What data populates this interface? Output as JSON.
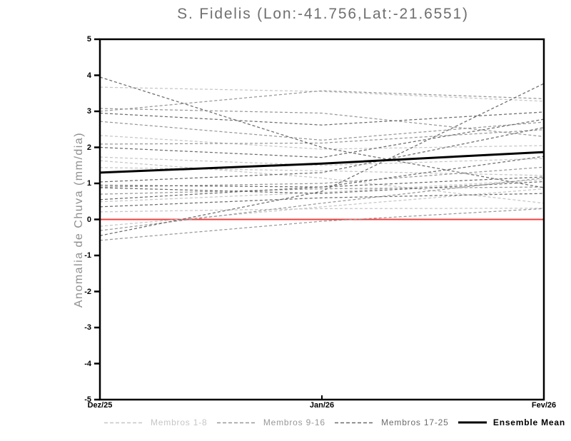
{
  "chart_data": {
    "type": "line",
    "title": "S. Fidelis (Lon:-41.756,Lat:-21.6551)",
    "ylabel": "Anomalia de Chuva (mm/dia)",
    "xlabel": "",
    "x_categories": [
      "Dez/25",
      "Jan/26",
      "Fev/26"
    ],
    "ylim": [
      -5,
      5
    ],
    "yticks": [
      5,
      4,
      3,
      2,
      1,
      0,
      -1,
      -2,
      -3,
      -4,
      -5
    ],
    "grid": "off",
    "legend_position": "bottom",
    "zero_line": {
      "value": 0,
      "color": "#f04040"
    },
    "series_groups": [
      {
        "name": "Membros 1-8",
        "color": "#c6c6c6",
        "style": "dashed",
        "members": [
          [
            3.67,
            3.55,
            3.28
          ],
          [
            2.33,
            1.95,
            2.05
          ],
          [
            1.73,
            1.5,
            1.69
          ],
          [
            1.63,
            1.15,
            0.45
          ],
          [
            1.44,
            1.35,
            1.22
          ],
          [
            0.49,
            0.75,
            1.1
          ],
          [
            0.21,
            0.3,
            0.31
          ],
          [
            -0.19,
            0.35,
            0.85
          ]
        ]
      },
      {
        "name": "Membros 9-16",
        "color": "#989898",
        "style": "dashed",
        "members": [
          [
            3.0,
            3.57,
            3.35
          ],
          [
            3.08,
            2.95,
            2.3
          ],
          [
            2.72,
            2.2,
            2.7
          ],
          [
            2.09,
            2.12,
            2.49
          ],
          [
            0.9,
            1.0,
            1.45
          ],
          [
            0.7,
            0.85,
            0.9
          ],
          [
            -0.31,
            0.45,
            1.15
          ],
          [
            -0.58,
            -0.05,
            0.3
          ]
        ]
      },
      {
        "name": "Membros 17-25",
        "color": "#6c6c6c",
        "style": "dashed",
        "members": [
          [
            3.95,
            2.0,
            0.88
          ],
          [
            2.95,
            2.62,
            2.98
          ],
          [
            2.0,
            1.72,
            2.78
          ],
          [
            1.04,
            1.3,
            2.55
          ],
          [
            0.95,
            0.9,
            1.18
          ],
          [
            0.88,
            0.72,
            1.05
          ],
          [
            0.55,
            0.9,
            1.75
          ],
          [
            0.35,
            0.6,
            0.72
          ],
          [
            -0.45,
            0.78,
            3.77
          ]
        ]
      }
    ],
    "ensemble_mean": {
      "name": "Ensemble Mean",
      "color": "#000000",
      "values": [
        1.3,
        1.55,
        1.87
      ]
    }
  }
}
